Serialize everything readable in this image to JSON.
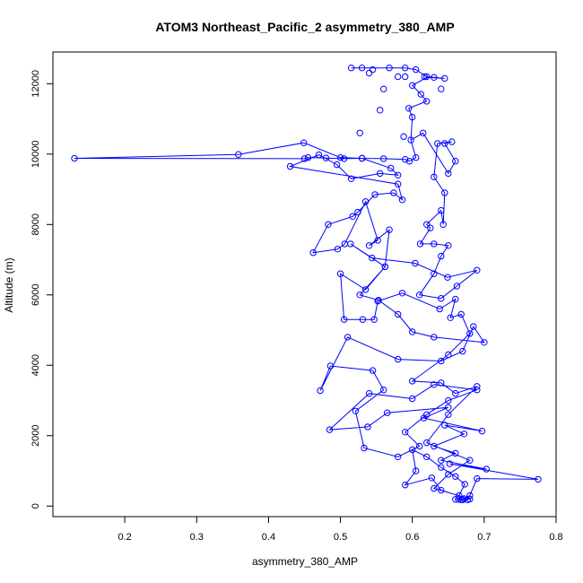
{
  "chart_data": {
    "type": "line",
    "title": "ATOM3 Northeast_Pacific_2 asymmetry_380_AMP",
    "xlabel": "asymmetry_380_AMP",
    "ylabel": "Altitude (m)",
    "xlim": [
      0.1,
      0.8
    ],
    "ylim": [
      -300,
      12900
    ],
    "x_ticks": [
      0.2,
      0.3,
      0.4,
      0.5,
      0.6,
      0.7,
      0.8
    ],
    "x_tick_labels": [
      "0.2",
      "0.3",
      "0.4",
      "0.5",
      "0.6",
      "0.7",
      "0.8"
    ],
    "y_ticks": [
      0,
      2000,
      4000,
      6000,
      8000,
      10000,
      12000
    ],
    "y_tick_labels": [
      "0",
      "2000",
      "4000",
      "6000",
      "8000",
      "10000",
      "12000"
    ],
    "grid": false,
    "line_color": "#0000ff",
    "marker": "open-circle",
    "series": [
      {
        "points": [
          [
            0.677,
            180
          ],
          [
            0.668,
            180
          ],
          [
            0.66,
            190
          ],
          [
            0.672,
            210
          ],
          [
            0.68,
            300
          ],
          [
            0.69,
            780
          ],
          [
            0.775,
            760
          ],
          [
            0.652,
            1200
          ],
          [
            0.703,
            1050
          ],
          [
            0.64,
            1300
          ],
          [
            0.66,
            1500
          ],
          [
            0.63,
            1700
          ],
          [
            0.672,
            2050
          ],
          [
            0.645,
            2300
          ],
          [
            0.697,
            2130
          ],
          [
            0.616,
            2500
          ],
          [
            0.65,
            2800
          ],
          [
            0.565,
            2650
          ],
          [
            0.538,
            2250
          ],
          [
            0.485,
            2170
          ],
          [
            0.54,
            3200
          ],
          [
            0.6,
            3050
          ],
          [
            0.63,
            3450
          ],
          [
            0.69,
            3300
          ],
          [
            0.65,
            3000
          ],
          [
            0.62,
            2600
          ],
          [
            0.59,
            2100
          ],
          [
            0.61,
            1700
          ],
          [
            0.58,
            1400
          ],
          [
            0.533,
            1650
          ],
          [
            0.521,
            2700
          ],
          [
            0.56,
            3300
          ],
          [
            0.545,
            3850
          ],
          [
            0.486,
            3980
          ],
          [
            0.472,
            3280
          ],
          [
            0.51,
            4800
          ],
          [
            0.58,
            4170
          ],
          [
            0.64,
            4120
          ],
          [
            0.67,
            4400
          ],
          [
            0.685,
            5100
          ],
          [
            0.7,
            4650
          ],
          [
            0.63,
            4800
          ],
          [
            0.6,
            4950
          ],
          [
            0.58,
            5450
          ],
          [
            0.553,
            5850
          ],
          [
            0.527,
            6000
          ],
          [
            0.562,
            6800
          ],
          [
            0.514,
            7450
          ],
          [
            0.544,
            7050
          ],
          [
            0.604,
            6900
          ],
          [
            0.649,
            6500
          ],
          [
            0.69,
            6700
          ],
          [
            0.662,
            6250
          ],
          [
            0.64,
            5900
          ],
          [
            0.61,
            6000
          ],
          [
            0.63,
            6600
          ],
          [
            0.64,
            7100
          ],
          [
            0.65,
            7400
          ],
          [
            0.63,
            7450
          ],
          [
            0.611,
            7450
          ],
          [
            0.625,
            7900
          ],
          [
            0.62,
            8000
          ],
          [
            0.64,
            8400
          ],
          [
            0.643,
            8000
          ],
          [
            0.645,
            8900
          ],
          [
            0.63,
            9350
          ],
          [
            0.635,
            10300
          ],
          [
            0.655,
            10350
          ],
          [
            0.645,
            10300
          ],
          [
            0.66,
            9800
          ],
          [
            0.65,
            9450
          ],
          [
            0.615,
            10600
          ],
          [
            0.598,
            10400
          ],
          [
            0.605,
            9900
          ],
          [
            0.596,
            9800
          ],
          [
            0.59,
            9850
          ],
          [
            0.56,
            9870
          ],
          [
            0.53,
            9880
          ],
          [
            0.505,
            9870
          ],
          [
            0.48,
            9890
          ],
          [
            0.455,
            9900
          ],
          [
            0.45,
            9870
          ],
          [
            0.13,
            9880
          ],
          [
            0.358,
            9990
          ],
          [
            0.449,
            10320
          ],
          [
            0.5,
            9900
          ],
          [
            0.53,
            9880
          ],
          [
            0.57,
            9600
          ],
          [
            0.58,
            9400
          ],
          [
            0.555,
            9450
          ],
          [
            0.515,
            9300
          ],
          [
            0.495,
            9700
          ],
          [
            0.47,
            9980
          ],
          [
            0.43,
            9650
          ],
          [
            0.58,
            9150
          ],
          [
            0.586,
            8700
          ],
          [
            0.574,
            8900
          ],
          [
            0.548,
            8850
          ],
          [
            0.524,
            8350
          ],
          [
            0.517,
            8230
          ],
          [
            0.483,
            8000
          ],
          [
            0.462,
            7200
          ],
          [
            0.496,
            7300
          ],
          [
            0.506,
            7450
          ],
          [
            0.535,
            8650
          ],
          [
            0.552,
            7550
          ],
          [
            0.54,
            7400
          ],
          [
            0.568,
            7850
          ],
          [
            0.562,
            6800
          ],
          [
            0.535,
            6150
          ],
          [
            0.5,
            6600
          ],
          [
            0.505,
            5300
          ],
          [
            0.531,
            5300
          ],
          [
            0.547,
            5300
          ],
          [
            0.552,
            5820
          ],
          [
            0.586,
            6050
          ],
          [
            0.638,
            5600
          ],
          [
            0.66,
            5880
          ],
          [
            0.653,
            5350
          ],
          [
            0.668,
            5450
          ],
          [
            0.68,
            4900
          ],
          [
            0.65,
            4300
          ],
          [
            0.6,
            3550
          ],
          [
            0.64,
            3500
          ],
          [
            0.66,
            3200
          ],
          [
            0.69,
            3400
          ],
          [
            0.65,
            2600
          ],
          [
            0.62,
            1800
          ],
          [
            0.68,
            1300
          ],
          [
            0.65,
            900
          ],
          [
            0.63,
            500
          ],
          [
            0.665,
            300
          ],
          [
            0.673,
            620
          ],
          [
            0.66,
            840
          ],
          [
            0.64,
            1100
          ],
          [
            0.62,
            1400
          ],
          [
            0.6,
            1600
          ],
          [
            0.605,
            1000
          ],
          [
            0.59,
            600
          ],
          [
            0.627,
            800
          ],
          [
            0.64,
            450
          ],
          [
            0.68,
            200
          ],
          [
            0.67,
            180
          ],
          [
            0.664,
            190
          ]
        ]
      }
    ],
    "extra_markers": [
      [
        0.515,
        12450
      ],
      [
        0.53,
        12450
      ],
      [
        0.545,
        12400
      ],
      [
        0.568,
        12450
      ],
      [
        0.59,
        12450
      ],
      [
        0.605,
        12400
      ],
      [
        0.62,
        12200
      ],
      [
        0.63,
        12180
      ],
      [
        0.645,
        12150
      ],
      [
        0.6,
        11950
      ],
      [
        0.58,
        12200
      ],
      [
        0.56,
        11850
      ],
      [
        0.54,
        12300
      ],
      [
        0.612,
        11700
      ],
      [
        0.62,
        11500
      ],
      [
        0.595,
        11300
      ],
      [
        0.6,
        11050
      ],
      [
        0.555,
        11250
      ],
      [
        0.527,
        10600
      ],
      [
        0.588,
        10500
      ],
      [
        0.59,
        12200
      ],
      [
        0.64,
        11850
      ],
      [
        0.617,
        12200
      ]
    ],
    "upper_path": [
      [
        0.515,
        12450
      ],
      [
        0.59,
        12450
      ],
      [
        0.605,
        12400
      ],
      [
        0.62,
        12200
      ],
      [
        0.645,
        12150
      ],
      [
        0.62,
        12180
      ],
      [
        0.6,
        11950
      ],
      [
        0.612,
        11700
      ],
      [
        0.62,
        11500
      ],
      [
        0.595,
        11300
      ],
      [
        0.6,
        11050
      ],
      [
        0.598,
        10400
      ]
    ]
  }
}
